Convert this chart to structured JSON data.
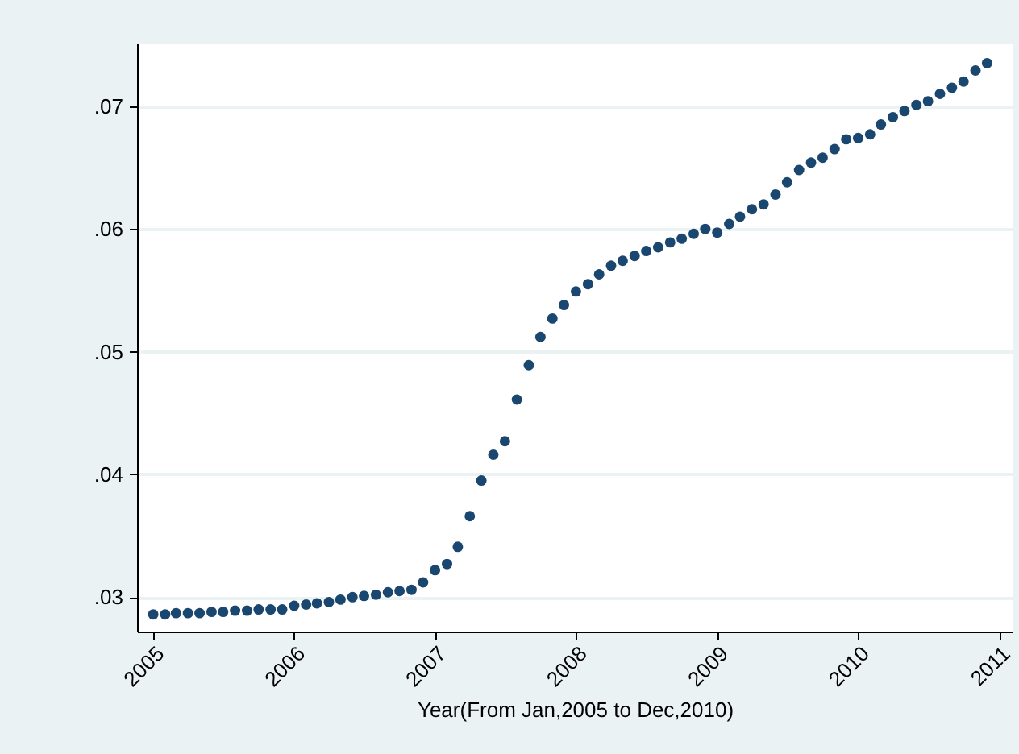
{
  "chart_data": {
    "type": "scatter",
    "xlabel": "Year(From Jan,2005 to Dec,2010)",
    "x": [
      "2005-01",
      "2005-02",
      "2005-03",
      "2005-04",
      "2005-05",
      "2005-06",
      "2005-07",
      "2005-08",
      "2005-09",
      "2005-10",
      "2005-11",
      "2005-12",
      "2006-01",
      "2006-02",
      "2006-03",
      "2006-04",
      "2006-05",
      "2006-06",
      "2006-07",
      "2006-08",
      "2006-09",
      "2006-10",
      "2006-11",
      "2006-12",
      "2007-01",
      "2007-02",
      "2007-03",
      "2007-04",
      "2007-05",
      "2007-06",
      "2007-07",
      "2007-08",
      "2007-09",
      "2007-10",
      "2007-11",
      "2007-12",
      "2008-01",
      "2008-02",
      "2008-03",
      "2008-04",
      "2008-05",
      "2008-06",
      "2008-07",
      "2008-08",
      "2008-09",
      "2008-10",
      "2008-11",
      "2008-12",
      "2009-01",
      "2009-02",
      "2009-03",
      "2009-04",
      "2009-05",
      "2009-06",
      "2009-07",
      "2009-08",
      "2009-09",
      "2009-10",
      "2009-11",
      "2009-12",
      "2010-01",
      "2010-02",
      "2010-03",
      "2010-04",
      "2010-05",
      "2010-06",
      "2010-07",
      "2010-08",
      "2010-09",
      "2010-10",
      "2010-11",
      "2010-12"
    ],
    "series": [
      {
        "color": "#1a476f",
        "values": [
          0.0286,
          0.0286,
          0.0287,
          0.0287,
          0.0287,
          0.0288,
          0.0288,
          0.0289,
          0.0289,
          0.029,
          0.029,
          0.029,
          0.0293,
          0.0294,
          0.0295,
          0.0296,
          0.0298,
          0.03,
          0.0301,
          0.0302,
          0.0304,
          0.0305,
          0.0306,
          0.0312,
          0.0322,
          0.0327,
          0.0341,
          0.0366,
          0.0395,
          0.0416,
          0.0427,
          0.0461,
          0.0489,
          0.0512,
          0.0527,
          0.0538,
          0.0549,
          0.0555,
          0.0563,
          0.057,
          0.0574,
          0.0578,
          0.0582,
          0.0585,
          0.0589,
          0.0592,
          0.0596,
          0.06,
          0.0597,
          0.0604,
          0.061,
          0.0616,
          0.062,
          0.0628,
          0.0638,
          0.0648,
          0.0654,
          0.0658,
          0.0665,
          0.0673,
          0.0674,
          0.0677,
          0.0685,
          0.0691,
          0.0696,
          0.0701,
          0.0704,
          0.071,
          0.0715,
          0.072,
          0.0729,
          0.0735
        ]
      }
    ],
    "xlim": [
      "2004-11-20",
      "2011-02-05"
    ],
    "xticks": [
      "2005",
      "2006",
      "2007",
      "2008",
      "2009",
      "2010",
      "2011"
    ],
    "ylim": [
      0.0272,
      0.0751
    ],
    "yticks": [
      {
        "value": 0.03,
        "label": ".03"
      },
      {
        "value": 0.04,
        "label": ".04"
      },
      {
        "value": 0.05,
        "label": ".05"
      },
      {
        "value": 0.06,
        "label": ".06"
      },
      {
        "value": 0.07,
        "label": ".07"
      }
    ],
    "grid": "y",
    "marker": "circle",
    "legend": false
  }
}
